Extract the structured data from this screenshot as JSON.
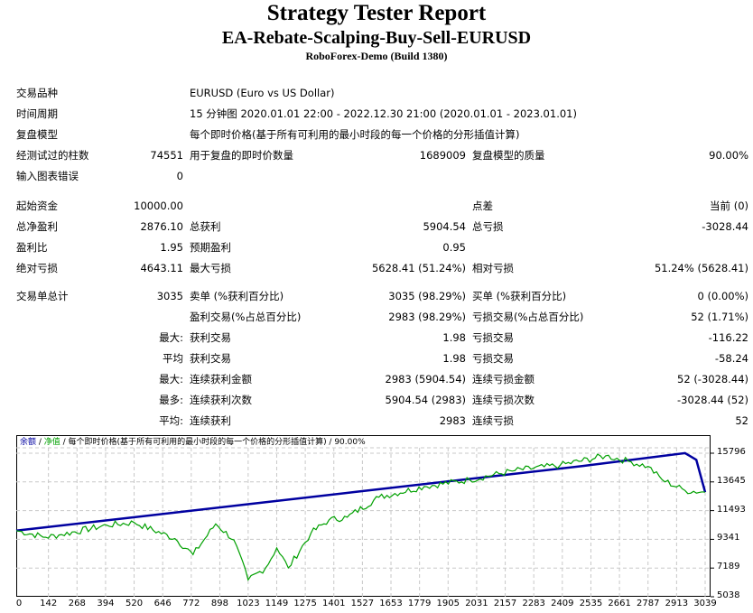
{
  "header": {
    "title": "Strategy Tester Report",
    "expert": "EA-Rebate-Scalping-Buy-Sell-EURUSD",
    "server": "RoboForex-Demo (Build 1380)"
  },
  "settings": {
    "symbol_label": "交易品种",
    "symbol_value": "EURUSD (Euro vs US Dollar)",
    "period_label": "时间周期",
    "period_value": "15 分钟图 2020.01.01 22:00 - 2022.12.30 21:00 (2020.01.01 - 2023.01.01)",
    "model_label": "复盘模型",
    "model_value": "每个即时价格(基于所有可利用的最小时段的每一个价格的分形插值计算)",
    "bars_label": "经测试过的柱数",
    "bars_value": "74551",
    "ticks_label": "用于复盘的即时价数量",
    "ticks_value": "1689009",
    "quality_label": "复盘模型的质量",
    "quality_value": "90.00%",
    "errors_label": "输入图表错误",
    "errors_value": "0"
  },
  "results": {
    "initial_deposit_label": "起始资金",
    "initial_deposit": "10000.00",
    "spread_label": "点差",
    "spread_value": "当前 (0)",
    "net_profit_label": "总净盈利",
    "net_profit": "2876.10",
    "gross_profit_label": "总获利",
    "gross_profit": "5904.54",
    "gross_loss_label": "总亏损",
    "gross_loss": "-3028.44",
    "profit_factor_label": "盈利比",
    "profit_factor": "1.95",
    "expected_payoff_label": "预期盈利",
    "expected_payoff": "0.95",
    "abs_drawdown_label": "绝对亏损",
    "abs_drawdown": "4643.11",
    "max_drawdown_label": "最大亏损",
    "max_drawdown": "5628.41 (51.24%)",
    "rel_drawdown_label": "相对亏损",
    "rel_drawdown": "51.24% (5628.41)"
  },
  "trades": {
    "total_label": "交易单总计",
    "total": "3035",
    "short_label": "卖单 (%获利百分比)",
    "short_value": "3035 (98.29%)",
    "long_label": "买单 (%获利百分比)",
    "long_value": "0 (0.00%)",
    "profit_trades_label": "盈利交易(%占总百分比)",
    "profit_trades_value": "2983 (98.29%)",
    "loss_trades_label": "亏损交易(%占总百分比)",
    "loss_trades_value": "52 (1.71%)",
    "rows": [
      {
        "prefix": "最大:",
        "win_label": "获利交易",
        "win_value": "1.98",
        "loss_label": "亏损交易",
        "loss_value": "-116.22"
      },
      {
        "prefix": "平均",
        "win_label": "获利交易",
        "win_value": "1.98",
        "loss_label": "亏损交易",
        "loss_value": "-58.24"
      },
      {
        "prefix": "最大:",
        "win_label": "连续获利金额",
        "win_value": "2983 (5904.54)",
        "loss_label": "连续亏损金额",
        "loss_value": "52 (-3028.44)"
      },
      {
        "prefix": "最多:",
        "win_label": "连续获利次数",
        "win_value": "5904.54 (2983)",
        "loss_label": "连续亏损次数",
        "loss_value": "-3028.44 (52)"
      },
      {
        "prefix": "平均:",
        "win_label": "连续获利",
        "win_value": "2983",
        "loss_label": "连续亏损",
        "loss_value": "52"
      }
    ]
  },
  "chart_legend": {
    "balance": "余额",
    "sep1": " / ",
    "equity": "净值",
    "sep2": " / 每个即时价格(基于所有可利用的最小时段的每一个价格的分形插值计算) / 90.00%",
    "balance_color": "#0000a0",
    "equity_color": "#00a000"
  },
  "chart_data": {
    "type": "line",
    "title": "余额 / 净值 / 每个即时价格(基于所有可利用的最小时段的每一个价格的分形插值计算) / 90.00%",
    "xlabel": "",
    "ylabel": "",
    "x_ticks": [
      0,
      142,
      268,
      394,
      520,
      646,
      772,
      898,
      1023,
      1149,
      1275,
      1401,
      1527,
      1653,
      1779,
      1905,
      2031,
      2157,
      2283,
      2409,
      2535,
      2661,
      2787,
      2913,
      3039
    ],
    "y_ticks": [
      15796,
      13645,
      11493,
      9341,
      7189,
      5038
    ],
    "ylim": [
      5038,
      16900
    ],
    "xlim": [
      0,
      3039
    ],
    "grid": true,
    "series": [
      {
        "name": "余额",
        "color": "#0000a0",
        "x": [
          0,
          500,
          1000,
          1500,
          2000,
          2500,
          2950,
          3000,
          3039
        ],
        "values": [
          10000,
          10960,
          11930,
          12900,
          13870,
          14840,
          15800,
          15300,
          12876
        ]
      },
      {
        "name": "净值",
        "color": "#00a000",
        "x": [
          0,
          130,
          200,
          400,
          520,
          700,
          780,
          880,
          960,
          1023,
          1100,
          1149,
          1200,
          1300,
          1380,
          1460,
          1600,
          1800,
          2000,
          2200,
          2400,
          2600,
          2700,
          2787,
          2850,
          2950,
          3039
        ],
        "values": [
          10000,
          9500,
          9700,
          10400,
          10600,
          9400,
          8200,
          10500,
          9300,
          6300,
          7200,
          8700,
          7200,
          9800,
          10800,
          11000,
          12500,
          13300,
          13800,
          14500,
          14900,
          15600,
          15200,
          14800,
          13800,
          13000,
          12876
        ]
      }
    ]
  },
  "x_axis": [
    "0",
    "142",
    "268",
    "394",
    "520",
    "646",
    "772",
    "898",
    "1023",
    "1149",
    "1275",
    "1401",
    "1527",
    "1653",
    "1779",
    "1905",
    "2031",
    "2157",
    "2283",
    "2409",
    "2535",
    "2661",
    "2787",
    "2913",
    "3039"
  ],
  "y_axis": [
    "15796",
    "13645",
    "11493",
    "9341",
    "7189",
    "5038"
  ]
}
